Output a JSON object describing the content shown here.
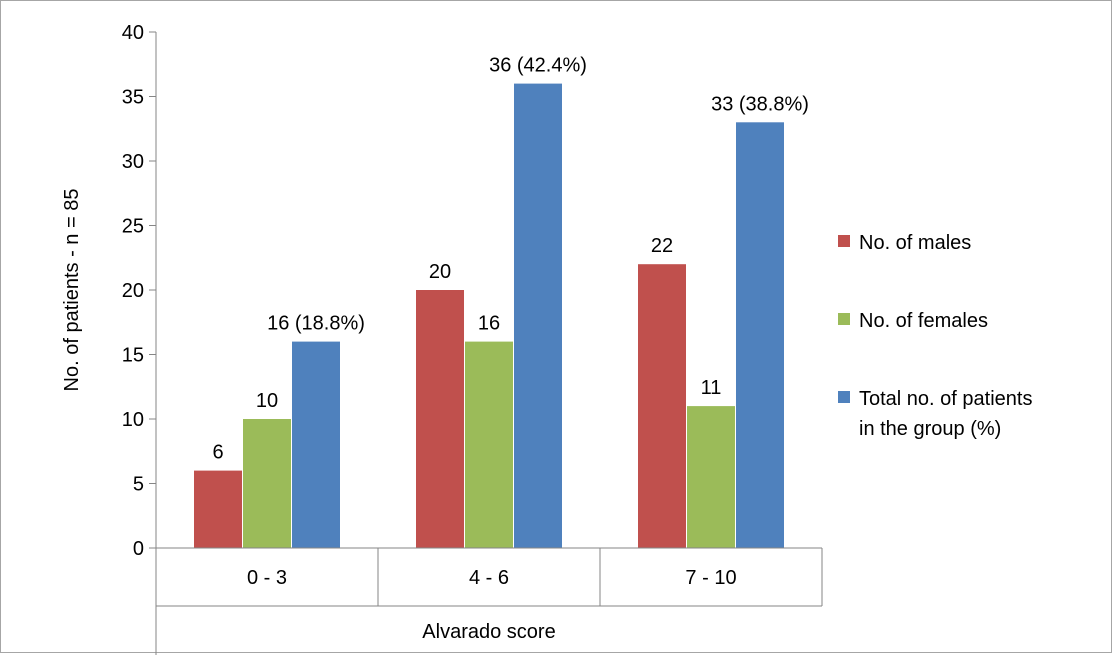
{
  "chart_data": {
    "type": "bar",
    "title": "",
    "xlabel": "Alvarado score",
    "ylabel": "No. of patients - n = 85",
    "ylim": [
      0,
      40
    ],
    "yticks": [
      0,
      5,
      10,
      15,
      20,
      25,
      30,
      35,
      40
    ],
    "categories": [
      "0 - 3",
      "4 - 6",
      "7 - 10"
    ],
    "series": [
      {
        "name": "No. of males",
        "color": "#c0504d",
        "values": [
          6,
          20,
          22
        ],
        "labels": [
          "6",
          "20",
          "22"
        ]
      },
      {
        "name": "No. of females",
        "color": "#9bbb59",
        "values": [
          10,
          16,
          11
        ],
        "labels": [
          "10",
          "16",
          "11"
        ]
      },
      {
        "name": "Total no. of patients in the group (%)",
        "name_lines": [
          "Total no. of patients",
          "in the group (%)"
        ],
        "color": "#4f81bd",
        "values": [
          16,
          36,
          33
        ],
        "labels": [
          "16 (18.8%)",
          "36 (42.4%)",
          "33 (38.8%)"
        ]
      }
    ],
    "grid": false,
    "legend_position": "right"
  }
}
